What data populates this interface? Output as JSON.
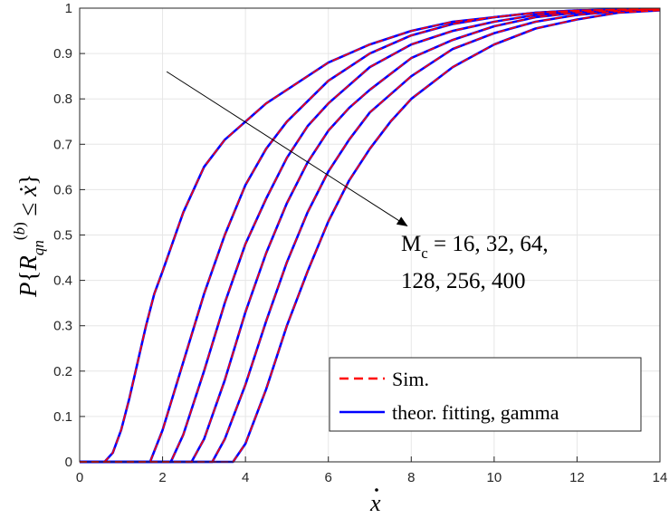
{
  "chart_data": {
    "type": "line",
    "xlabel": "ẋ",
    "ylabel": "P{R_qn^(b) ≤ ẋ}",
    "xlim": [
      0,
      14
    ],
    "ylim": [
      0,
      1
    ],
    "xticks": [
      0,
      2,
      4,
      6,
      8,
      10,
      12,
      14
    ],
    "xtick_labels": [
      "0",
      "2",
      "4",
      "6",
      "8",
      "10",
      "12",
      "14"
    ],
    "yticks": [
      0,
      0.1,
      0.2,
      0.3,
      0.4,
      0.5,
      0.6,
      0.7,
      0.8,
      0.9,
      1
    ],
    "ytick_labels": [
      "0",
      "0.1",
      "0.2",
      "0.3",
      "0.4",
      "0.5",
      "0.6",
      "0.7",
      "0.8",
      "0.9",
      "1"
    ],
    "grid": true,
    "legend_position": "bottom-right",
    "legend": [
      {
        "label": "Sim.",
        "color": "#ff0000",
        "style": "dashed"
      },
      {
        "label": "theor. fitting, gamma",
        "color": "#0000ff",
        "style": "solid"
      }
    ],
    "annotation": {
      "line1": "M",
      "line1_sub": "c",
      "line1_rest": " = 16, 32, 64,",
      "line2": "128, 256, 400",
      "arrow_from": [
        2.1,
        0.86
      ],
      "arrow_to": [
        7.9,
        0.52
      ]
    },
    "series": [
      {
        "curve": "M_c = 16",
        "onset": 0.6,
        "x": [
          0.6,
          0.8,
          1.0,
          1.2,
          1.4,
          1.6,
          1.8,
          2.0,
          2.5,
          3.0,
          3.5,
          4.0,
          4.5,
          5.0,
          6.0,
          7.0,
          8.0,
          9.0,
          10.0,
          11.0,
          12.0,
          13.0,
          14.0
        ],
        "y": [
          0.0,
          0.02,
          0.07,
          0.14,
          0.22,
          0.3,
          0.37,
          0.42,
          0.55,
          0.65,
          0.71,
          0.75,
          0.79,
          0.82,
          0.88,
          0.92,
          0.95,
          0.97,
          0.98,
          0.99,
          0.995,
          0.997,
          0.998
        ]
      },
      {
        "curve": "M_c = 32",
        "onset": 1.7,
        "x": [
          1.7,
          2.0,
          2.5,
          3.0,
          3.5,
          4.0,
          4.5,
          5.0,
          6.0,
          7.0,
          8.0,
          9.0,
          10.0,
          11.0,
          12.0,
          13.0,
          14.0
        ],
        "y": [
          0.0,
          0.07,
          0.22,
          0.37,
          0.5,
          0.61,
          0.69,
          0.75,
          0.84,
          0.9,
          0.94,
          0.965,
          0.98,
          0.99,
          0.995,
          0.997,
          0.998
        ]
      },
      {
        "curve": "M_c = 64",
        "onset": 2.2,
        "x": [
          2.2,
          2.5,
          3.0,
          3.5,
          4.0,
          4.5,
          5.0,
          5.5,
          6.0,
          7.0,
          8.0,
          9.0,
          10.0,
          11.0,
          12.0,
          13.0,
          14.0
        ],
        "y": [
          0.0,
          0.06,
          0.2,
          0.35,
          0.48,
          0.58,
          0.67,
          0.74,
          0.79,
          0.87,
          0.92,
          0.95,
          0.97,
          0.985,
          0.993,
          0.996,
          0.998
        ]
      },
      {
        "curve": "M_c = 128",
        "onset": 2.7,
        "x": [
          2.7,
          3.0,
          3.5,
          4.0,
          4.5,
          5.0,
          5.5,
          6.0,
          6.5,
          7.0,
          8.0,
          9.0,
          10.0,
          11.0,
          12.0,
          13.0,
          14.0
        ],
        "y": [
          0.0,
          0.05,
          0.18,
          0.33,
          0.46,
          0.57,
          0.66,
          0.73,
          0.78,
          0.82,
          0.89,
          0.93,
          0.96,
          0.98,
          0.99,
          0.995,
          0.998
        ]
      },
      {
        "curve": "M_c = 256",
        "onset": 3.2,
        "x": [
          3.2,
          3.5,
          4.0,
          4.5,
          5.0,
          5.5,
          6.0,
          6.5,
          7.0,
          8.0,
          9.0,
          10.0,
          11.0,
          12.0,
          13.0,
          14.0
        ],
        "y": [
          0.0,
          0.05,
          0.17,
          0.31,
          0.44,
          0.55,
          0.64,
          0.71,
          0.77,
          0.85,
          0.91,
          0.945,
          0.97,
          0.985,
          0.993,
          0.997
        ]
      },
      {
        "curve": "M_c = 400",
        "onset": 3.7,
        "x": [
          3.7,
          4.0,
          4.5,
          5.0,
          5.5,
          6.0,
          6.5,
          7.0,
          7.5,
          8.0,
          9.0,
          10.0,
          11.0,
          12.0,
          13.0,
          14.0
        ],
        "y": [
          0.0,
          0.04,
          0.16,
          0.3,
          0.42,
          0.53,
          0.62,
          0.69,
          0.75,
          0.8,
          0.87,
          0.92,
          0.955,
          0.975,
          0.99,
          0.995
        ]
      }
    ]
  }
}
